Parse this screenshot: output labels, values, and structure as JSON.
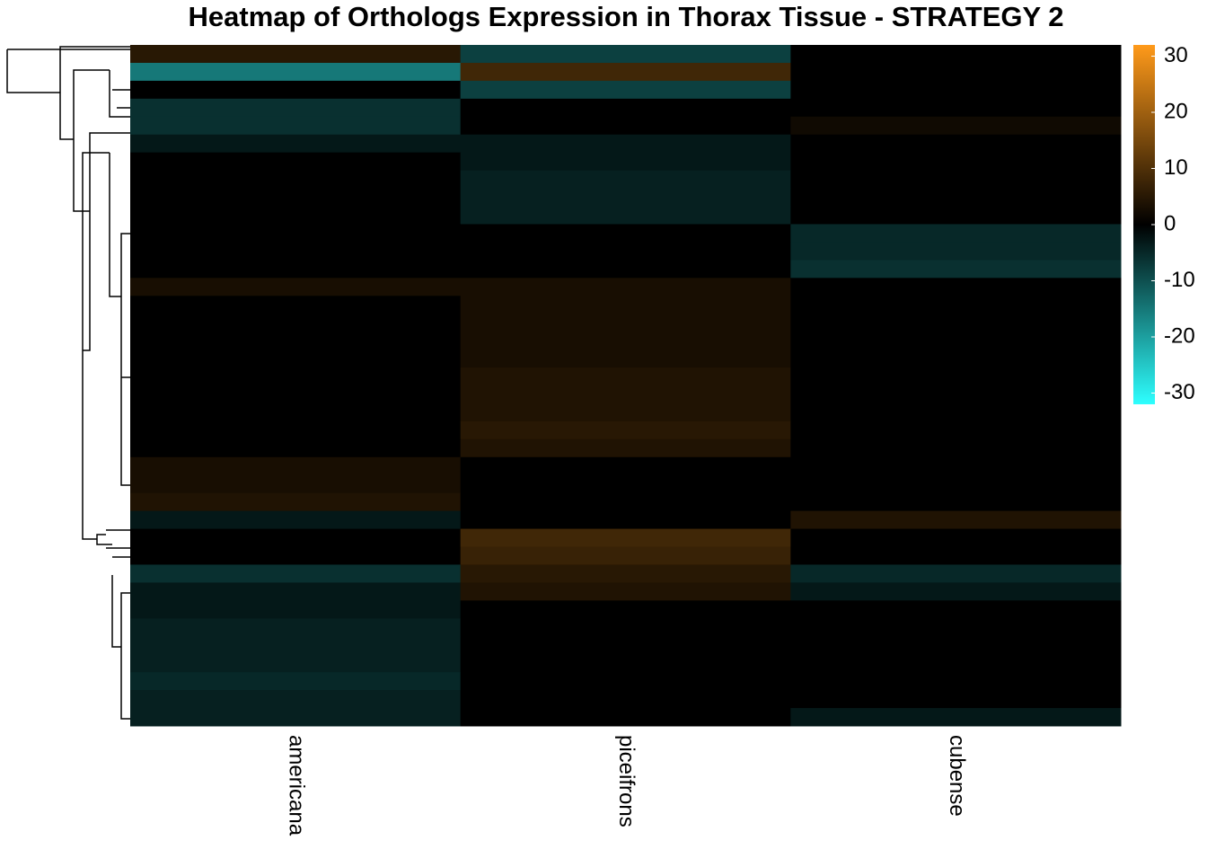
{
  "chart_data": {
    "type": "heatmap",
    "title": "Heatmap of Orthologs Expression in Thorax Tissue - STRATEGY 2",
    "columns": [
      "americana",
      "piceifrons",
      "cubense"
    ],
    "values": [
      [
        5,
        -8,
        0
      ],
      [
        -15,
        8,
        0
      ],
      [
        0,
        -8,
        0
      ],
      [
        -6,
        0,
        0
      ],
      [
        -6,
        0,
        2
      ],
      [
        -3,
        -3,
        0
      ],
      [
        0,
        -3,
        0
      ],
      [
        0,
        -4,
        0
      ],
      [
        0,
        -4,
        0
      ],
      [
        0,
        -4,
        0
      ],
      [
        0,
        0,
        -5
      ],
      [
        0,
        0,
        -5
      ],
      [
        0,
        0,
        -6
      ],
      [
        3,
        3,
        0
      ],
      [
        0,
        3,
        0
      ],
      [
        0,
        3,
        0
      ],
      [
        0,
        3,
        0
      ],
      [
        0,
        3,
        0
      ],
      [
        0,
        4,
        0
      ],
      [
        0,
        4,
        0
      ],
      [
        0,
        4,
        0
      ],
      [
        0,
        5,
        0
      ],
      [
        0,
        4,
        0
      ],
      [
        3,
        0,
        0
      ],
      [
        3,
        0,
        0
      ],
      [
        4,
        0,
        0
      ],
      [
        -3,
        0,
        4
      ],
      [
        0,
        8,
        0
      ],
      [
        0,
        7,
        0
      ],
      [
        -6,
        5,
        -5
      ],
      [
        -3,
        4,
        -3
      ],
      [
        -3,
        0,
        0
      ],
      [
        -4,
        0,
        0
      ],
      [
        -4,
        0,
        0
      ],
      [
        -4,
        0,
        0
      ],
      [
        -5,
        0,
        0
      ],
      [
        -4,
        0,
        0
      ],
      [
        -4,
        0,
        -3
      ]
    ],
    "zlim": [
      -32,
      32
    ],
    "zticks": [
      30,
      20,
      10,
      0,
      -10,
      -20,
      -30
    ],
    "colors": [
      "#2effff",
      "#000000",
      "#ff9a1a"
    ]
  }
}
